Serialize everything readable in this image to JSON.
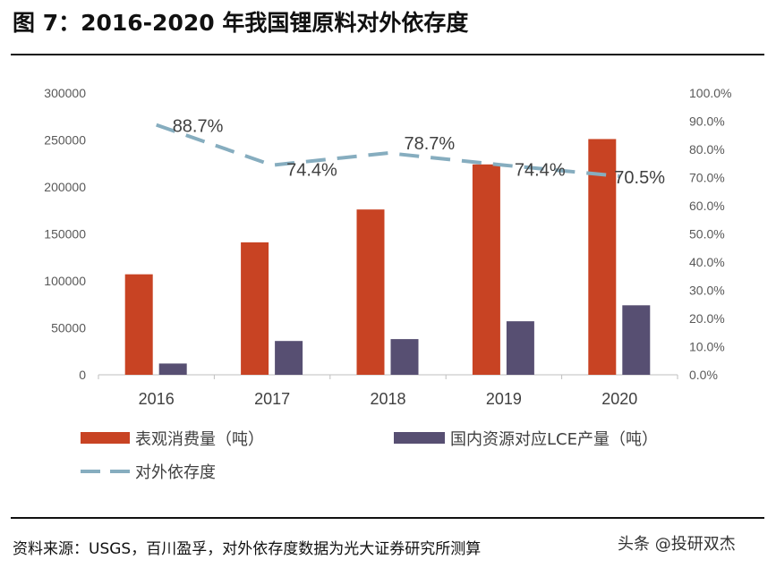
{
  "title": "图 7：2016-2020 年我国锂原料对外依存度",
  "source": "资料来源：USGS，百川盈孚，对外依存度数据为光大证券研究所测算",
  "watermark": "头条 @投研双杰",
  "chart_data": {
    "type": "bar+line",
    "categories": [
      "2016",
      "2017",
      "2018",
      "2019",
      "2020"
    ],
    "series": [
      {
        "name": "表观消费量（吨）",
        "type": "bar",
        "axis": "left",
        "color": "#c84323",
        "values": [
          107000,
          141000,
          176000,
          224000,
          251000
        ]
      },
      {
        "name": "国内资源对应LCE产量（吨）",
        "type": "bar",
        "axis": "left",
        "color": "#574f72",
        "values": [
          12000,
          36000,
          38000,
          57000,
          74000
        ]
      },
      {
        "name": "对外依存度",
        "type": "line",
        "axis": "right",
        "color": "#86adbf",
        "style": "dashed",
        "values": [
          88.7,
          74.4,
          78.7,
          74.4,
          70.5
        ],
        "labels": [
          "88.7%",
          "74.4%",
          "78.7%",
          "74.4%",
          "70.5%"
        ]
      }
    ],
    "left_axis": {
      "range": [
        0,
        300000
      ],
      "ticks": [
        "0",
        "50000",
        "100000",
        "150000",
        "200000",
        "250000",
        "300000"
      ]
    },
    "right_axis": {
      "range": [
        0,
        100
      ],
      "ticks": [
        "0.0%",
        "10.0%",
        "20.0%",
        "30.0%",
        "40.0%",
        "50.0%",
        "60.0%",
        "70.0%",
        "80.0%",
        "90.0%",
        "100.0%"
      ]
    },
    "grid": false,
    "legend": "bottom"
  }
}
